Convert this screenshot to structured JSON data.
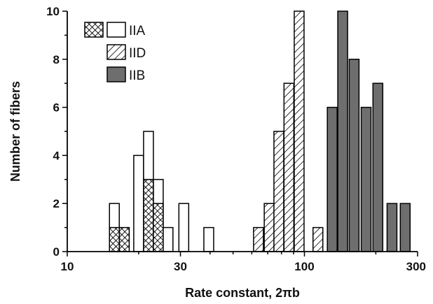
{
  "chart_data": {
    "type": "bar",
    "xlabel": "Rate constant, 2πb",
    "ylabel": "Number of fibers",
    "x_scale": "log",
    "xlim": [
      10,
      300
    ],
    "ylim": [
      0,
      10
    ],
    "x_ticks": [
      10,
      30,
      100,
      300
    ],
    "x_tick_labels": [
      "10",
      "30",
      "100",
      "300"
    ],
    "y_ticks": [
      0,
      2,
      4,
      6,
      8,
      10
    ],
    "y_tick_labels": [
      "0",
      "2",
      "4",
      "6",
      "8",
      "10"
    ],
    "legend": {
      "placement": "top-left",
      "entries": [
        {
          "label": "IIA",
          "swatches": [
            "crosshatch",
            "open"
          ]
        },
        {
          "label": "IID",
          "swatches": [
            "diagonal"
          ]
        },
        {
          "label": "IIB",
          "swatches": [
            "gray"
          ]
        }
      ]
    },
    "colors": {
      "IIB": "#6e6e6e",
      "outline": "#000000",
      "hatch": "#000000"
    },
    "series": [
      {
        "name": "IIA",
        "style": "open",
        "bars": [
          {
            "x": 15.8,
            "value": 2
          },
          {
            "x": 20.0,
            "value": 4
          },
          {
            "x": 22.0,
            "value": 5
          },
          {
            "x": 24.2,
            "value": 3
          },
          {
            "x": 26.6,
            "value": 1
          },
          {
            "x": 31.0,
            "value": 2
          },
          {
            "x": 39.5,
            "value": 1
          }
        ]
      },
      {
        "name": "IIA",
        "style": "crosshatch",
        "bars": [
          {
            "x": 15.8,
            "value": 1
          },
          {
            "x": 17.4,
            "value": 1
          },
          {
            "x": 22.0,
            "value": 3
          },
          {
            "x": 24.2,
            "value": 2
          }
        ]
      },
      {
        "name": "IID",
        "style": "diagonal",
        "bars": [
          {
            "x": 64.0,
            "value": 1
          },
          {
            "x": 71.0,
            "value": 2
          },
          {
            "x": 78.0,
            "value": 5
          },
          {
            "x": 86.0,
            "value": 7
          },
          {
            "x": 95.0,
            "value": 10
          },
          {
            "x": 114.0,
            "value": 1
          }
        ]
      },
      {
        "name": "IIB",
        "style": "gray",
        "bars": [
          {
            "x": 131.0,
            "value": 6
          },
          {
            "x": 145.0,
            "value": 10
          },
          {
            "x": 162.0,
            "value": 8
          },
          {
            "x": 182.0,
            "value": 6
          },
          {
            "x": 204.0,
            "value": 7
          },
          {
            "x": 234.0,
            "value": 2
          },
          {
            "x": 266.0,
            "value": 2
          }
        ]
      }
    ]
  }
}
